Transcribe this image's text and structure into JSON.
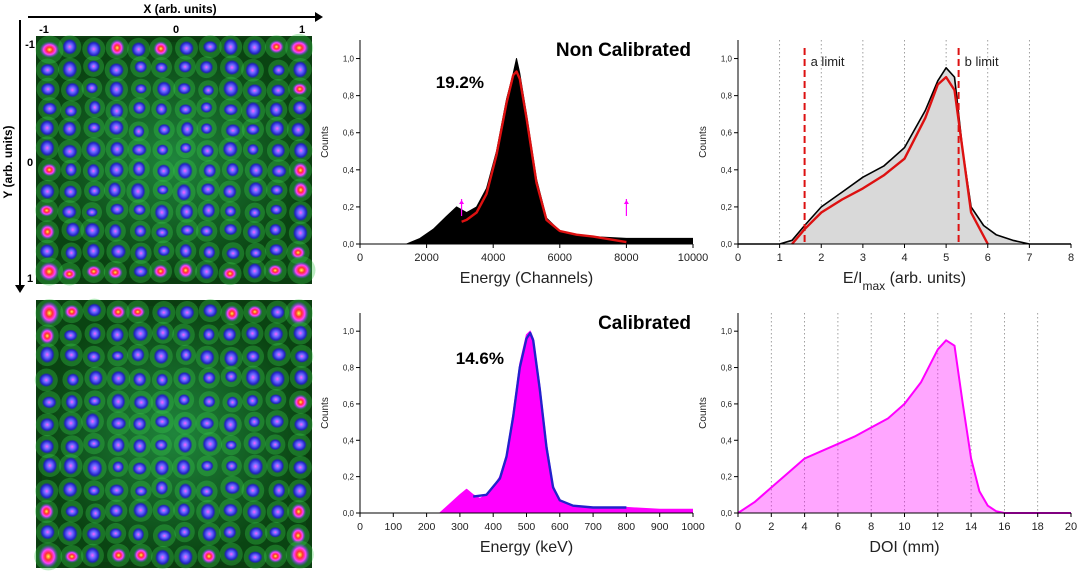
{
  "flood_maps": {
    "x_axis_label": "X (arb. units)",
    "y_axis_label": "Y (arb. units)",
    "x_ticks": [
      "-1",
      "0",
      "1"
    ],
    "y_ticks": [
      "-1",
      "0",
      "1"
    ],
    "grid_size": 12
  },
  "colors": {
    "black_hist": "#000000",
    "red_fit": "#dd1111",
    "gray_fill": "#d9d9d9",
    "magenta": "#ff00ff",
    "blue_fit": "#2222cc",
    "limit_line": "#dd1111"
  },
  "chart_data": [
    {
      "id": "energy-noncal",
      "type": "area",
      "title": "Non Calibrated",
      "annotation": "19.2%",
      "xlabel": "Energy (Channels)",
      "ylabel": "Counts",
      "xlim": [
        0,
        10000
      ],
      "ylim": [
        0,
        1.1
      ],
      "xticks": [
        0,
        2000,
        4000,
        6000,
        8000,
        10000
      ],
      "yticks": [
        0.0,
        0.2,
        0.4,
        0.6,
        0.8,
        1.0
      ],
      "ytick_labels": [
        "0,0",
        "0,2",
        "0,4",
        "0,6",
        "0,8",
        "1,0"
      ],
      "photopeak_center": 4700,
      "photopeak_fwhm_percent": 19.2,
      "fit_range": [
        3050,
        8000
      ],
      "series": [
        {
          "name": "spectrum",
          "x": [
            1400,
            1800,
            2200,
            2600,
            2900,
            3200,
            3500,
            3800,
            4100,
            4400,
            4600,
            4700,
            4800,
            5000,
            5300,
            5600,
            6000,
            6500,
            7000,
            8000,
            9000,
            10000
          ],
          "values": [
            0.0,
            0.03,
            0.08,
            0.15,
            0.2,
            0.17,
            0.2,
            0.3,
            0.5,
            0.78,
            0.92,
            1.0,
            0.92,
            0.7,
            0.35,
            0.14,
            0.07,
            0.05,
            0.04,
            0.03,
            0.03,
            0.03
          ]
        },
        {
          "name": "fit",
          "x": [
            3050,
            3200,
            3500,
            3800,
            4100,
            4400,
            4600,
            4700,
            4800,
            5000,
            5300,
            5600,
            6000,
            6500,
            7000,
            8000
          ],
          "values": [
            0.12,
            0.13,
            0.17,
            0.27,
            0.48,
            0.76,
            0.91,
            0.93,
            0.89,
            0.68,
            0.33,
            0.13,
            0.07,
            0.05,
            0.04,
            0.01
          ]
        }
      ],
      "markers": [
        3050,
        8000
      ]
    },
    {
      "id": "doi-noncal",
      "type": "area",
      "xlabel": "E/I_max (arb. units)",
      "ylabel": "Counts",
      "xlim": [
        0,
        8
      ],
      "ylim": [
        0,
        1.1
      ],
      "xticks": [
        0,
        1,
        2,
        3,
        4,
        5,
        6,
        7,
        8
      ],
      "yticks": [
        0.0,
        0.2,
        0.4,
        0.6,
        0.8,
        1.0
      ],
      "ytick_labels": [
        "0,0",
        "0,2",
        "0,4",
        "0,6",
        "0,8",
        "1,0"
      ],
      "a_limit": {
        "x": 1.6,
        "label": "a limit"
      },
      "b_limit": {
        "x": 5.3,
        "label": "b limit"
      },
      "vgrid": [
        1,
        2,
        3,
        4,
        5,
        6,
        7
      ],
      "series": [
        {
          "name": "histogram",
          "x": [
            0,
            1.0,
            1.3,
            1.6,
            2.0,
            2.5,
            3.0,
            3.5,
            4.0,
            4.5,
            4.8,
            5.0,
            5.2,
            5.4,
            5.6,
            5.9,
            6.2,
            6.6,
            7.0,
            8.0
          ],
          "values": [
            0.0,
            0.0,
            0.02,
            0.1,
            0.2,
            0.28,
            0.36,
            0.42,
            0.52,
            0.72,
            0.88,
            0.95,
            0.9,
            0.5,
            0.2,
            0.1,
            0.05,
            0.02,
            0.0,
            0.0
          ]
        },
        {
          "name": "fit",
          "x": [
            1.3,
            1.6,
            2.0,
            2.5,
            3.0,
            3.5,
            4.0,
            4.5,
            4.8,
            5.0,
            5.2,
            5.4,
            5.6,
            6.0
          ],
          "values": [
            0.0,
            0.08,
            0.17,
            0.24,
            0.3,
            0.37,
            0.46,
            0.68,
            0.86,
            0.9,
            0.83,
            0.5,
            0.17,
            0.0
          ]
        }
      ]
    },
    {
      "id": "energy-cal",
      "type": "area",
      "title": "Calibrated",
      "annotation": "14.6%",
      "xlabel": "Energy (keV)",
      "ylabel": "Counts",
      "xlim": [
        0,
        1000
      ],
      "ylim": [
        0,
        1.1
      ],
      "xticks": [
        0,
        100,
        200,
        300,
        400,
        500,
        600,
        700,
        800,
        900,
        1000
      ],
      "yticks": [
        0.0,
        0.2,
        0.4,
        0.6,
        0.8,
        1.0
      ],
      "ytick_labels": [
        "0,0",
        "0,2",
        "0,4",
        "0,6",
        "0,8",
        "1,0"
      ],
      "series": [
        {
          "name": "spectrum",
          "x": [
            240,
            270,
            300,
            320,
            340,
            360,
            380,
            400,
            420,
            440,
            460,
            480,
            500,
            511,
            520,
            540,
            560,
            580,
            600,
            640,
            700,
            800,
            900,
            1000
          ],
          "values": [
            0.0,
            0.05,
            0.1,
            0.13,
            0.1,
            0.08,
            0.1,
            0.14,
            0.2,
            0.32,
            0.55,
            0.82,
            0.98,
            1.0,
            0.96,
            0.7,
            0.38,
            0.15,
            0.07,
            0.04,
            0.03,
            0.03,
            0.02,
            0.02
          ]
        },
        {
          "name": "fit",
          "x": [
            340,
            380,
            420,
            440,
            460,
            480,
            500,
            511,
            520,
            540,
            560,
            580,
            600,
            640,
            700,
            800
          ],
          "values": [
            0.09,
            0.1,
            0.19,
            0.31,
            0.53,
            0.8,
            0.96,
            0.99,
            0.95,
            0.68,
            0.36,
            0.14,
            0.07,
            0.04,
            0.03,
            0.03
          ]
        }
      ]
    },
    {
      "id": "doi-cal",
      "type": "area",
      "xlabel": "DOI (mm)",
      "ylabel": "Counts",
      "xlim": [
        0,
        20
      ],
      "ylim": [
        0,
        1.1
      ],
      "xticks": [
        0,
        2,
        4,
        6,
        8,
        10,
        12,
        14,
        16,
        18,
        20
      ],
      "yticks": [
        0.0,
        0.2,
        0.4,
        0.6,
        0.8,
        1.0
      ],
      "ytick_labels": [
        "0,0",
        "0,2",
        "0,4",
        "0,6",
        "0,8",
        "1,0"
      ],
      "vgrid": [
        2,
        4,
        6,
        8,
        10,
        12,
        14,
        16,
        18
      ],
      "series": [
        {
          "name": "histogram",
          "x": [
            0,
            1.0,
            2.0,
            3.0,
            4.0,
            5.0,
            6.0,
            7.0,
            8.0,
            9.0,
            10.0,
            11.0,
            12.0,
            12.5,
            13.0,
            13.5,
            14.0,
            14.5,
            15.0,
            15.5,
            16.0,
            20.0
          ],
          "values": [
            0.0,
            0.06,
            0.14,
            0.22,
            0.3,
            0.34,
            0.38,
            0.42,
            0.47,
            0.52,
            0.6,
            0.72,
            0.9,
            0.95,
            0.92,
            0.6,
            0.3,
            0.12,
            0.04,
            0.01,
            0.0,
            0.0
          ]
        }
      ]
    }
  ]
}
